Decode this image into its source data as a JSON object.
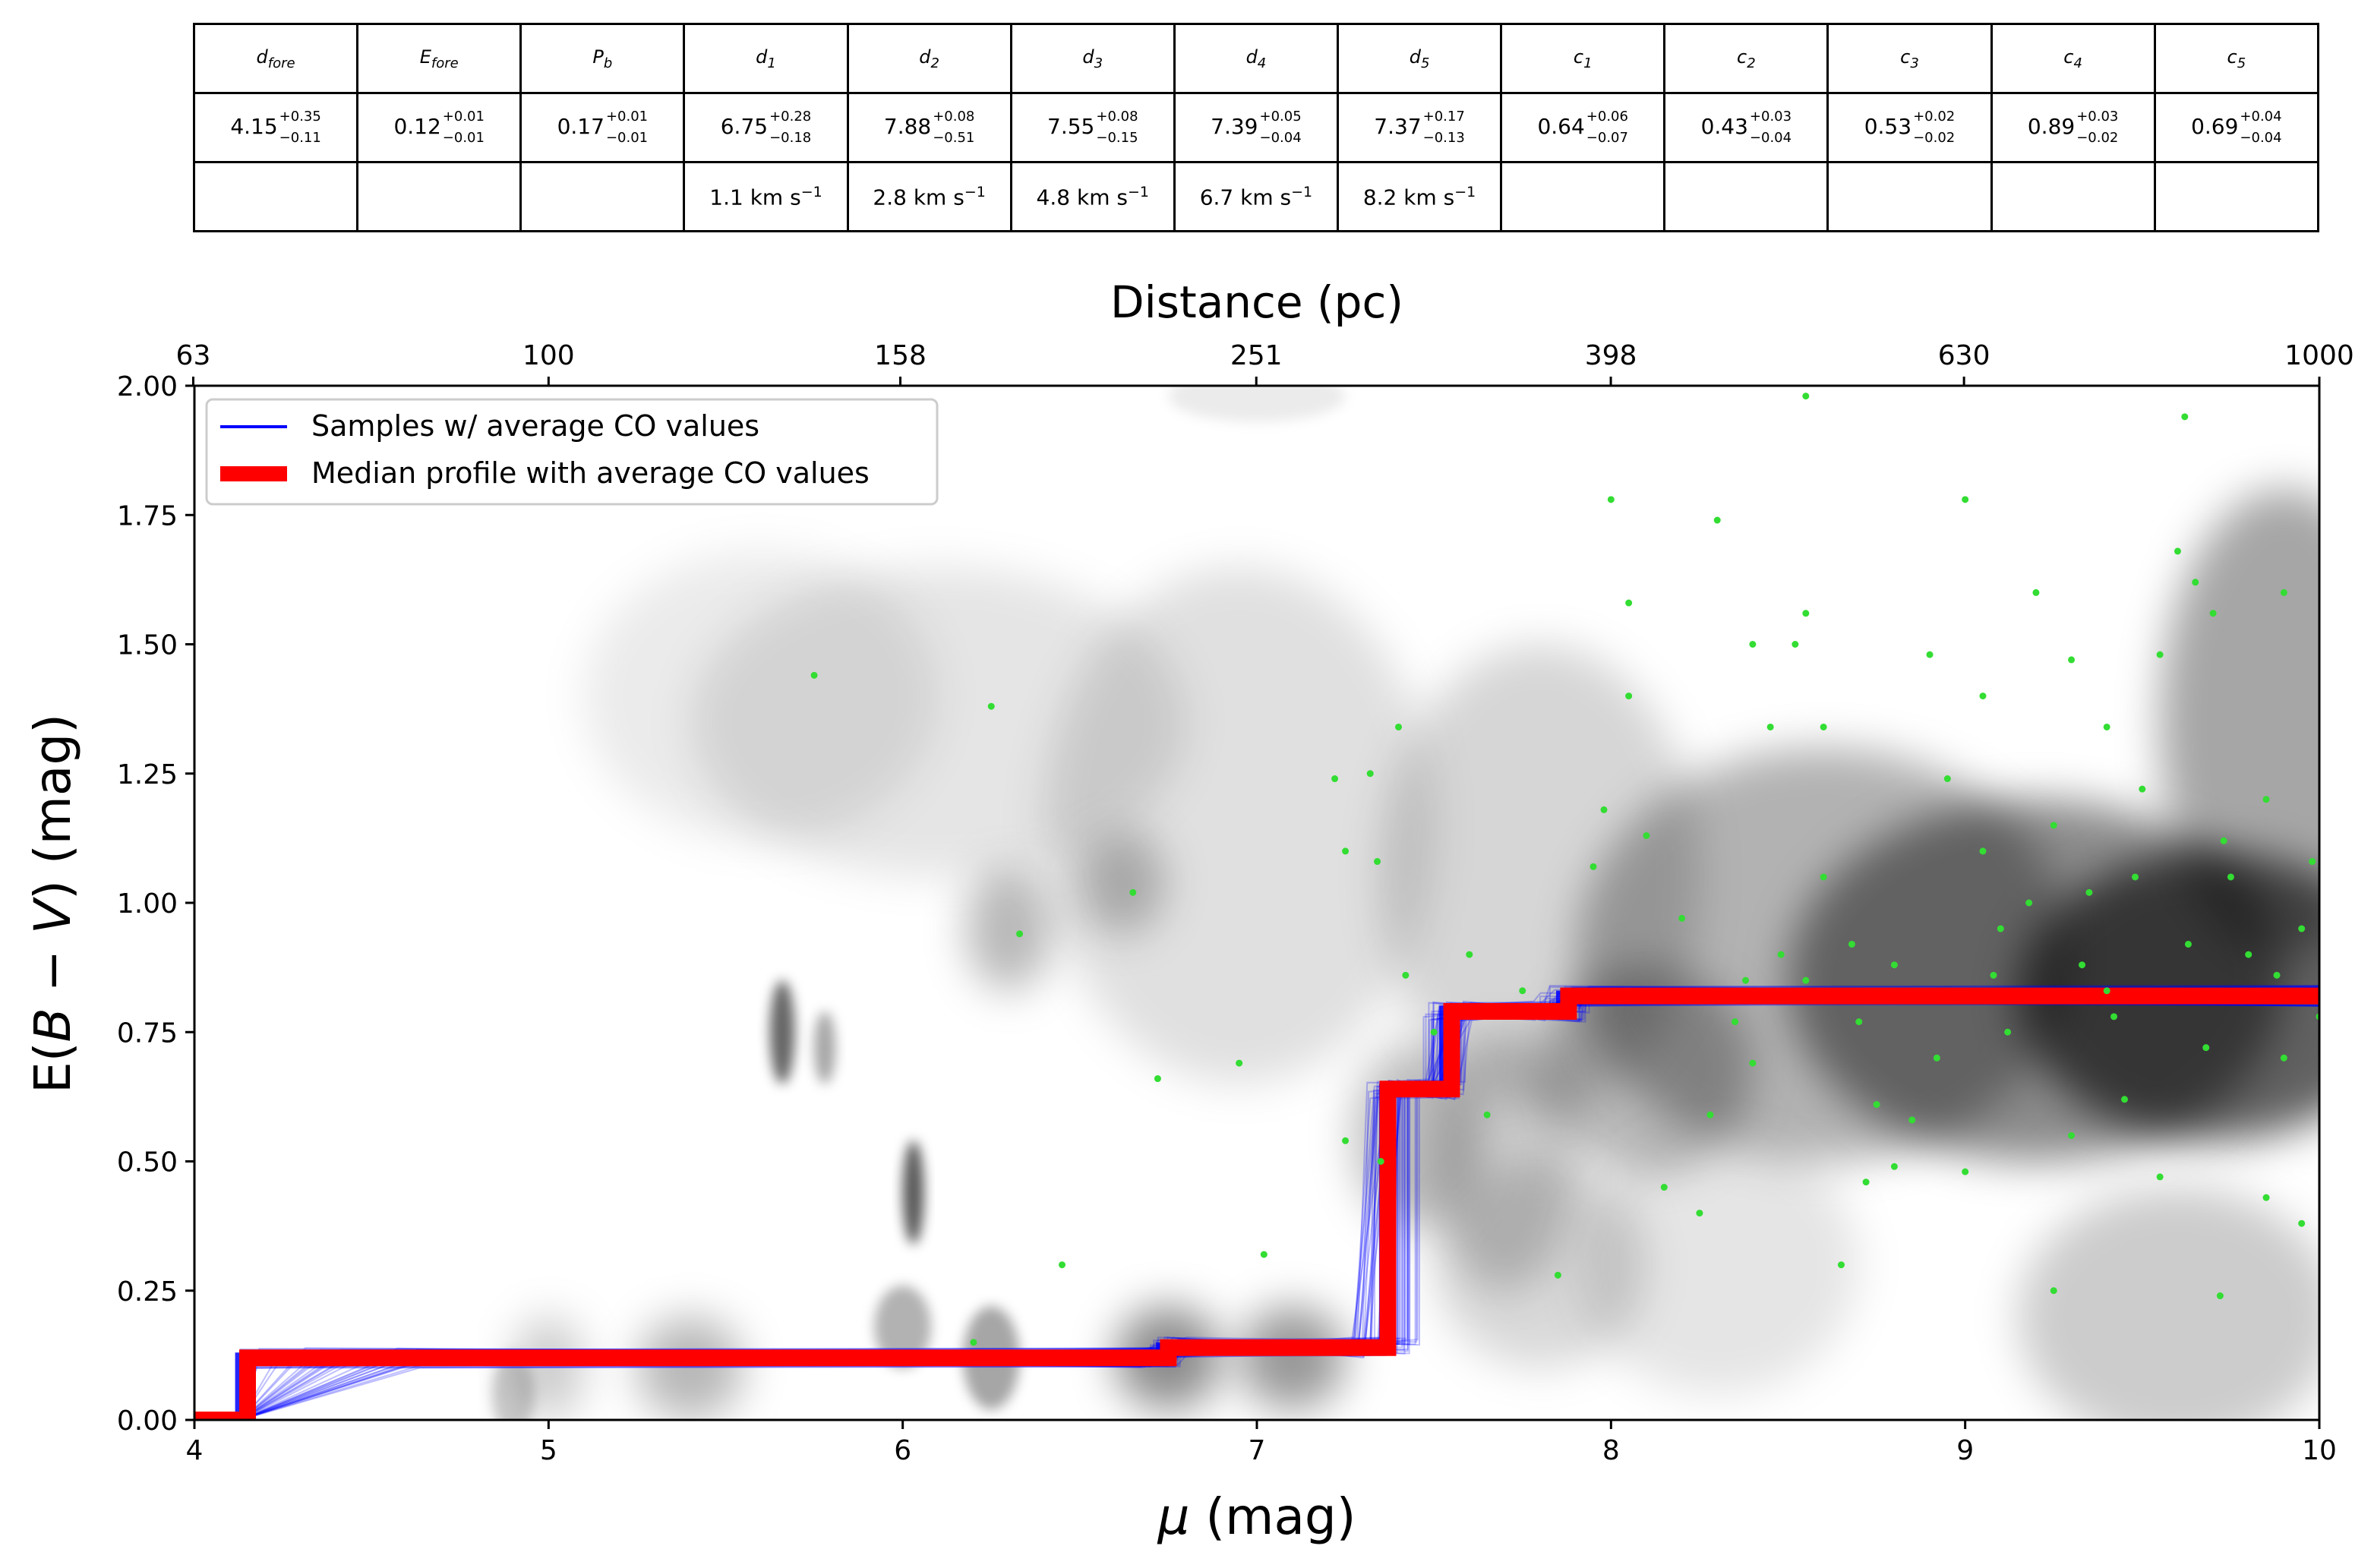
{
  "table": {
    "headers": [
      {
        "base": "d",
        "sub": "fore"
      },
      {
        "base": "E",
        "sub": "fore"
      },
      {
        "base": "P",
        "sub": "b"
      },
      {
        "base": "d",
        "sub": "1"
      },
      {
        "base": "d",
        "sub": "2"
      },
      {
        "base": "d",
        "sub": "3"
      },
      {
        "base": "d",
        "sub": "4"
      },
      {
        "base": "d",
        "sub": "5"
      },
      {
        "base": "c",
        "sub": "1"
      },
      {
        "base": "c",
        "sub": "2"
      },
      {
        "base": "c",
        "sub": "3"
      },
      {
        "base": "c",
        "sub": "4"
      },
      {
        "base": "c",
        "sub": "5"
      }
    ],
    "values": [
      {
        "v": "4.15",
        "up": "+0.35",
        "dn": "−0.11"
      },
      {
        "v": "0.12",
        "up": "+0.01",
        "dn": "−0.01"
      },
      {
        "v": "0.17",
        "up": "+0.01",
        "dn": "−0.01"
      },
      {
        "v": "6.75",
        "up": "+0.28",
        "dn": "−0.18"
      },
      {
        "v": "7.88",
        "up": "+0.08",
        "dn": "−0.51"
      },
      {
        "v": "7.55",
        "up": "+0.08",
        "dn": "−0.15"
      },
      {
        "v": "7.39",
        "up": "+0.05",
        "dn": "−0.04"
      },
      {
        "v": "7.37",
        "up": "+0.17",
        "dn": "−0.13"
      },
      {
        "v": "0.64",
        "up": "+0.06",
        "dn": "−0.07"
      },
      {
        "v": "0.43",
        "up": "+0.03",
        "dn": "−0.04"
      },
      {
        "v": "0.53",
        "up": "+0.02",
        "dn": "−0.02"
      },
      {
        "v": "0.89",
        "up": "+0.03",
        "dn": "−0.02"
      },
      {
        "v": "0.69",
        "up": "+0.04",
        "dn": "−0.04"
      }
    ],
    "velocities": [
      "",
      "",
      "",
      "1.1 km s",
      "2.8 km s",
      "4.8 km s",
      "6.7 km s",
      "8.2 km s",
      "",
      "",
      "",
      "",
      ""
    ],
    "velocity_exponent": "−1"
  },
  "chart_data": {
    "type": "line",
    "title": "",
    "xlabel_symbol": "μ",
    "xlabel_unit": " (mag)",
    "ylabel_pre": "E(",
    "ylabel_B": "B",
    "ylabel_minus": " − ",
    "ylabel_V": "V",
    "ylabel_post": ") (mag)",
    "top_xlabel": "Distance (pc)",
    "xlim": [
      4,
      10
    ],
    "ylim": [
      0,
      2.0
    ],
    "x_ticks": [
      "4",
      "5",
      "6",
      "7",
      "8",
      "9",
      "10"
    ],
    "y_ticks": [
      "0.00",
      "0.25",
      "0.50",
      "0.75",
      "1.00",
      "1.25",
      "1.50",
      "1.75",
      "2.00"
    ],
    "top_ticks": [
      "63",
      "100",
      "158",
      "251",
      "398",
      "630",
      "1000"
    ],
    "legend_position": "upper-left",
    "series": [
      {
        "name": "Samples  w/ average CO values",
        "color": "#0000ff",
        "style": "thin-lines-ensemble",
        "x": [
          4.0,
          4.13,
          4.13,
          6.73,
          6.73,
          7.36,
          7.36,
          7.53,
          7.53,
          7.86,
          7.86,
          10.0
        ],
        "y": [
          0.0,
          0.0,
          0.12,
          0.12,
          0.14,
          0.14,
          0.64,
          0.64,
          0.79,
          0.79,
          0.82,
          0.82
        ]
      },
      {
        "name": "Median profile with average CO values",
        "color": "#ff0000",
        "style": "thick-step",
        "x": [
          4.0,
          4.15,
          4.15,
          6.75,
          6.75,
          7.37,
          7.37,
          7.55,
          7.55,
          7.88,
          7.88,
          10.0
        ],
        "y": [
          0.0,
          0.0,
          0.12,
          0.12,
          0.14,
          0.14,
          0.64,
          0.64,
          0.79,
          0.79,
          0.82,
          0.82
        ]
      }
    ],
    "stars": {
      "color": "#33dd33",
      "points": [
        [
          5.75,
          1.44
        ],
        [
          6.25,
          1.38
        ],
        [
          6.33,
          0.94
        ],
        [
          6.65,
          1.02
        ],
        [
          6.72,
          0.66
        ],
        [
          6.45,
          0.3
        ],
        [
          6.2,
          0.15
        ],
        [
          7.22,
          1.24
        ],
        [
          7.32,
          1.25
        ],
        [
          7.4,
          1.34
        ],
        [
          7.34,
          1.08
        ],
        [
          7.25,
          1.1
        ],
        [
          6.95,
          0.69
        ],
        [
          7.25,
          0.54
        ],
        [
          7.02,
          0.32
        ],
        [
          7.35,
          0.5
        ],
        [
          7.42,
          0.86
        ],
        [
          7.5,
          0.75
        ],
        [
          7.6,
          0.9
        ],
        [
          7.65,
          0.59
        ],
        [
          7.75,
          0.83
        ],
        [
          7.85,
          0.28
        ],
        [
          7.98,
          1.18
        ],
        [
          8.0,
          1.78
        ],
        [
          8.05,
          1.4
        ],
        [
          7.95,
          1.07
        ],
        [
          8.1,
          1.13
        ],
        [
          8.2,
          0.97
        ],
        [
          8.28,
          0.59
        ],
        [
          8.35,
          0.77
        ],
        [
          8.4,
          0.69
        ],
        [
          8.45,
          1.34
        ],
        [
          8.52,
          1.5
        ],
        [
          8.55,
          1.56
        ],
        [
          8.6,
          1.34
        ],
        [
          8.55,
          0.85
        ],
        [
          8.6,
          1.05
        ],
        [
          8.68,
          0.92
        ],
        [
          8.7,
          0.77
        ],
        [
          8.75,
          0.61
        ],
        [
          8.8,
          0.49
        ],
        [
          8.9,
          1.48
        ],
        [
          8.95,
          1.24
        ],
        [
          9.0,
          1.78
        ],
        [
          9.05,
          1.1
        ],
        [
          9.1,
          0.95
        ],
        [
          9.2,
          1.6
        ],
        [
          9.25,
          1.15
        ],
        [
          9.3,
          1.47
        ],
        [
          9.35,
          1.02
        ],
        [
          9.4,
          0.83
        ],
        [
          9.45,
          0.62
        ],
        [
          9.55,
          1.48
        ],
        [
          9.6,
          1.68
        ],
        [
          9.62,
          1.94
        ],
        [
          9.65,
          1.62
        ],
        [
          9.7,
          1.56
        ],
        [
          9.75,
          1.05
        ],
        [
          9.8,
          0.9
        ],
        [
          9.85,
          1.2
        ],
        [
          9.9,
          1.6
        ],
        [
          9.95,
          0.95
        ],
        [
          10.0,
          0.78
        ],
        [
          8.55,
          1.98
        ],
        [
          8.05,
          1.58
        ],
        [
          8.3,
          1.74
        ],
        [
          8.4,
          1.5
        ],
        [
          9.05,
          1.4
        ],
        [
          9.4,
          1.34
        ],
        [
          9.5,
          1.22
        ],
        [
          8.65,
          0.3
        ],
        [
          8.85,
          0.58
        ],
        [
          9.25,
          0.25
        ],
        [
          9.72,
          0.24
        ],
        [
          8.25,
          0.4
        ],
        [
          8.15,
          0.45
        ],
        [
          8.72,
          0.46
        ],
        [
          9.0,
          0.48
        ],
        [
          9.3,
          0.55
        ],
        [
          9.55,
          0.47
        ],
        [
          9.85,
          0.43
        ],
        [
          9.95,
          0.38
        ],
        [
          8.92,
          0.7
        ],
        [
          9.12,
          0.75
        ],
        [
          9.42,
          0.78
        ],
        [
          9.68,
          0.72
        ],
        [
          9.9,
          0.7
        ],
        [
          8.8,
          0.88
        ],
        [
          9.08,
          0.86
        ],
        [
          9.33,
          0.88
        ],
        [
          9.63,
          0.92
        ],
        [
          9.88,
          0.86
        ],
        [
          9.18,
          1.0
        ],
        [
          9.48,
          1.05
        ],
        [
          9.73,
          1.12
        ],
        [
          9.98,
          1.08
        ],
        [
          8.48,
          0.9
        ],
        [
          8.38,
          0.85
        ]
      ]
    },
    "density_blobs": [
      [
        9.7,
        0.82,
        0.55,
        0.28,
        0.62
      ],
      [
        9.2,
        0.85,
        0.7,
        0.35,
        0.45
      ],
      [
        8.6,
        0.9,
        0.7,
        0.4,
        0.3
      ],
      [
        9.9,
        1.35,
        0.35,
        0.45,
        0.35
      ],
      [
        8.1,
        0.68,
        0.3,
        0.2,
        0.28
      ],
      [
        7.8,
        1.05,
        0.45,
        0.45,
        0.16
      ],
      [
        9.6,
        0.2,
        0.45,
        0.25,
        0.2
      ],
      [
        6.95,
        1.15,
        0.55,
        0.5,
        0.12
      ],
      [
        6.1,
        1.35,
        0.7,
        0.3,
        0.1
      ],
      [
        5.6,
        1.4,
        0.5,
        0.28,
        0.08
      ],
      [
        6.3,
        0.95,
        0.12,
        0.12,
        0.28
      ],
      [
        6.62,
        1.04,
        0.12,
        0.1,
        0.25
      ],
      [
        5.66,
        0.75,
        0.035,
        0.1,
        0.6
      ],
      [
        5.78,
        0.72,
        0.03,
        0.07,
        0.35
      ],
      [
        6.03,
        0.44,
        0.03,
        0.1,
        0.65
      ],
      [
        6.0,
        0.18,
        0.08,
        0.08,
        0.3
      ],
      [
        6.25,
        0.12,
        0.08,
        0.1,
        0.35
      ],
      [
        6.75,
        0.12,
        0.15,
        0.1,
        0.45
      ],
      [
        7.1,
        0.12,
        0.15,
        0.1,
        0.4
      ],
      [
        5.4,
        0.1,
        0.15,
        0.1,
        0.28
      ],
      [
        5.0,
        0.1,
        0.1,
        0.1,
        0.2
      ],
      [
        4.9,
        0.05,
        0.06,
        0.08,
        0.2
      ],
      [
        7.45,
        0.55,
        0.18,
        0.18,
        0.25
      ],
      [
        7.7,
        0.5,
        0.2,
        0.25,
        0.2
      ],
      [
        7.8,
        0.3,
        0.3,
        0.2,
        0.15
      ],
      [
        8.3,
        0.3,
        0.4,
        0.25,
        0.1
      ],
      [
        7.0,
        1.98,
        0.25,
        0.05,
        0.08
      ]
    ]
  }
}
